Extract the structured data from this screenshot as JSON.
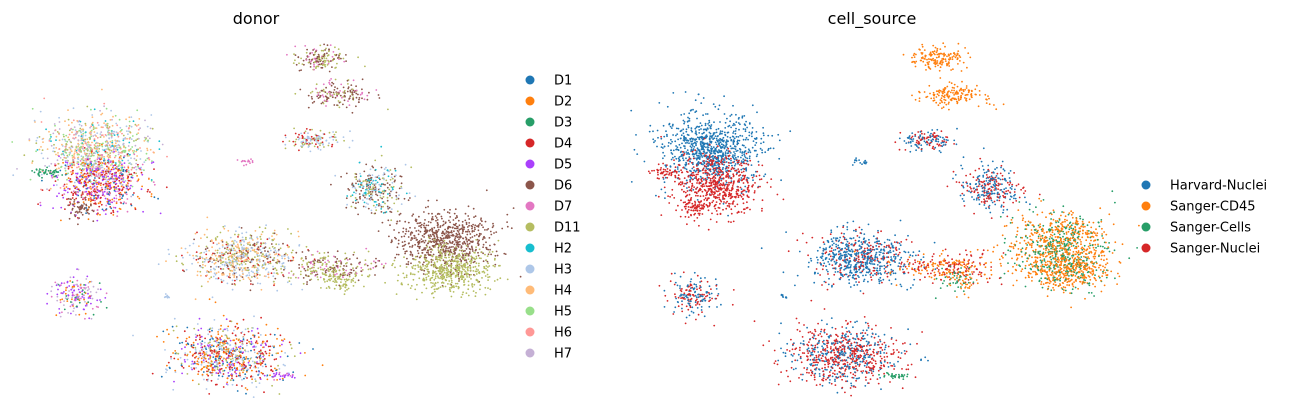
{
  "chart_data": [
    {
      "type": "scatter",
      "title": "donor",
      "xlabel": "",
      "ylabel": "",
      "grid": false,
      "legend_position": "right",
      "legend": [
        {
          "label": "D1",
          "color": "#1f77b4"
        },
        {
          "label": "D2",
          "color": "#ff7f0e"
        },
        {
          "label": "D3",
          "color": "#279e68"
        },
        {
          "label": "D4",
          "color": "#d62728"
        },
        {
          "label": "D5",
          "color": "#aa40fc"
        },
        {
          "label": "D6",
          "color": "#8c564b"
        },
        {
          "label": "D7",
          "color": "#e377c2"
        },
        {
          "label": "D11",
          "color": "#b5bd61"
        },
        {
          "label": "H2",
          "color": "#17becf"
        },
        {
          "label": "H3",
          "color": "#aec7e8"
        },
        {
          "label": "H4",
          "color": "#ffbb78"
        },
        {
          "label": "H5",
          "color": "#98df8a"
        },
        {
          "label": "H6",
          "color": "#ff9896"
        },
        {
          "label": "H7",
          "color": "#c5b0d5"
        }
      ]
    },
    {
      "type": "scatter",
      "title": "cell_source",
      "xlabel": "",
      "ylabel": "",
      "grid": false,
      "legend_position": "right",
      "legend": [
        {
          "label": "Harvard-Nuclei",
          "color": "#1f77b4"
        },
        {
          "label": "Sanger-CD45",
          "color": "#ff7f0e"
        },
        {
          "label": "Sanger-Cells",
          "color": "#279e68"
        },
        {
          "label": "Sanger-Nuclei",
          "color": "#d62728"
        }
      ]
    }
  ]
}
